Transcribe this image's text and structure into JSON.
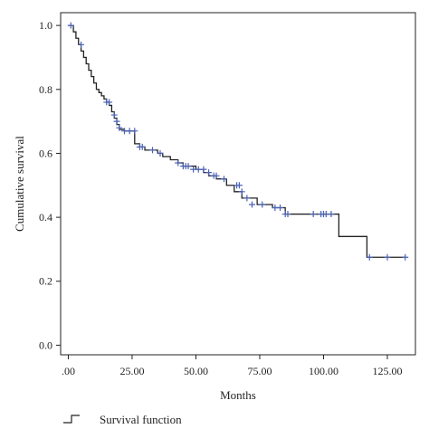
{
  "chart_data": {
    "type": "line",
    "subtype": "kaplan-meier step curve",
    "xlabel": "Months",
    "ylabel": "Cumulative survival",
    "xlim": [
      -3,
      136
    ],
    "ylim": [
      -0.03,
      1.04
    ],
    "x_ticks": [
      0,
      25,
      50,
      75,
      100,
      125
    ],
    "x_tick_labels": [
      ".00",
      "25.00",
      "50.00",
      "75.00",
      "100.00",
      "125.00"
    ],
    "y_ticks": [
      0.0,
      0.2,
      0.4,
      0.6,
      0.8,
      1.0
    ],
    "y_tick_labels": [
      "0.0",
      "0.2",
      "0.4",
      "0.6",
      "0.8",
      "1.0"
    ],
    "grid": false,
    "legend_position": "bottom-left",
    "colors": {
      "line": "#222222",
      "censor": "#4a62b5"
    },
    "series": [
      {
        "name": "Survival function",
        "steps": [
          [
            0,
            1.0
          ],
          [
            2,
            0.98
          ],
          [
            3,
            0.96
          ],
          [
            4,
            0.94
          ],
          [
            5,
            0.92
          ],
          [
            6,
            0.9
          ],
          [
            7,
            0.88
          ],
          [
            8,
            0.86
          ],
          [
            9,
            0.84
          ],
          [
            10,
            0.82
          ],
          [
            11,
            0.8
          ],
          [
            12,
            0.79
          ],
          [
            13,
            0.78
          ],
          [
            14,
            0.77
          ],
          [
            15,
            0.76
          ],
          [
            16,
            0.75
          ],
          [
            17,
            0.73
          ],
          [
            18,
            0.71
          ],
          [
            19,
            0.69
          ],
          [
            20,
            0.675
          ],
          [
            22,
            0.67
          ],
          [
            26,
            0.63
          ],
          [
            28,
            0.62
          ],
          [
            30,
            0.61
          ],
          [
            35,
            0.6
          ],
          [
            37,
            0.59
          ],
          [
            40,
            0.58
          ],
          [
            43,
            0.57
          ],
          [
            45,
            0.56
          ],
          [
            50,
            0.55
          ],
          [
            53,
            0.54
          ],
          [
            55,
            0.53
          ],
          [
            58,
            0.52
          ],
          [
            62,
            0.5
          ],
          [
            65,
            0.48
          ],
          [
            68,
            0.46
          ],
          [
            74,
            0.44
          ],
          [
            80,
            0.43
          ],
          [
            85,
            0.41
          ],
          [
            106,
            0.34
          ],
          [
            117,
            0.275
          ]
        ],
        "end_x": 132,
        "censored": [
          [
            1,
            1.0
          ],
          [
            5,
            0.94
          ],
          [
            15,
            0.76
          ],
          [
            16,
            0.76
          ],
          [
            18,
            0.72
          ],
          [
            19,
            0.7
          ],
          [
            20,
            0.68
          ],
          [
            22,
            0.67
          ],
          [
            24,
            0.67
          ],
          [
            26,
            0.67
          ],
          [
            28,
            0.62
          ],
          [
            29,
            0.62
          ],
          [
            33,
            0.61
          ],
          [
            36,
            0.6
          ],
          [
            43,
            0.57
          ],
          [
            45,
            0.56
          ],
          [
            46,
            0.56
          ],
          [
            47,
            0.56
          ],
          [
            49,
            0.55
          ],
          [
            51,
            0.55
          ],
          [
            53,
            0.55
          ],
          [
            55,
            0.54
          ],
          [
            57,
            0.53
          ],
          [
            58,
            0.53
          ],
          [
            61,
            0.52
          ],
          [
            66,
            0.5
          ],
          [
            67,
            0.5
          ],
          [
            68,
            0.48
          ],
          [
            70,
            0.46
          ],
          [
            72,
            0.44
          ],
          [
            76,
            0.44
          ],
          [
            81,
            0.43
          ],
          [
            83,
            0.43
          ],
          [
            85,
            0.41
          ],
          [
            86,
            0.41
          ],
          [
            96,
            0.41
          ],
          [
            99,
            0.41
          ],
          [
            100,
            0.41
          ],
          [
            101,
            0.41
          ],
          [
            103,
            0.41
          ],
          [
            118,
            0.275
          ],
          [
            125,
            0.275
          ],
          [
            132,
            0.275
          ]
        ]
      }
    ]
  }
}
